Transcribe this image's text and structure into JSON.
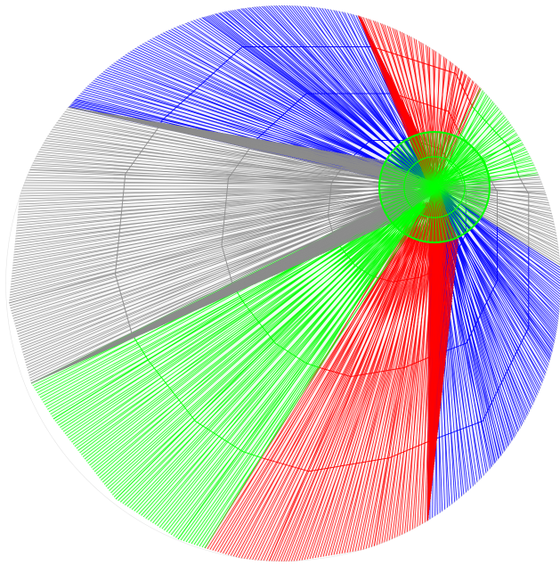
{
  "image": {
    "subject": "beach-ball",
    "background": "#ffffff",
    "palette": {
      "red": "#ff0000",
      "green": "#00ff00",
      "blue": "#0000ff",
      "gray": "#8c8c8c"
    },
    "panels": [
      {
        "name": "blue-top-panel",
        "color": "blue"
      },
      {
        "name": "red-top-right-panel",
        "color": "red"
      },
      {
        "name": "green-right-panel",
        "color": "green"
      },
      {
        "name": "gray-right-panel",
        "color": "gray"
      },
      {
        "name": "blue-right-panel",
        "color": "blue"
      },
      {
        "name": "red-bottom-panel",
        "color": "red"
      },
      {
        "name": "green-bottom-left-panel",
        "color": "green"
      },
      {
        "name": "gray-left-panel",
        "color": "gray"
      }
    ],
    "cap": {
      "name": "green-cap",
      "color": "green"
    }
  }
}
